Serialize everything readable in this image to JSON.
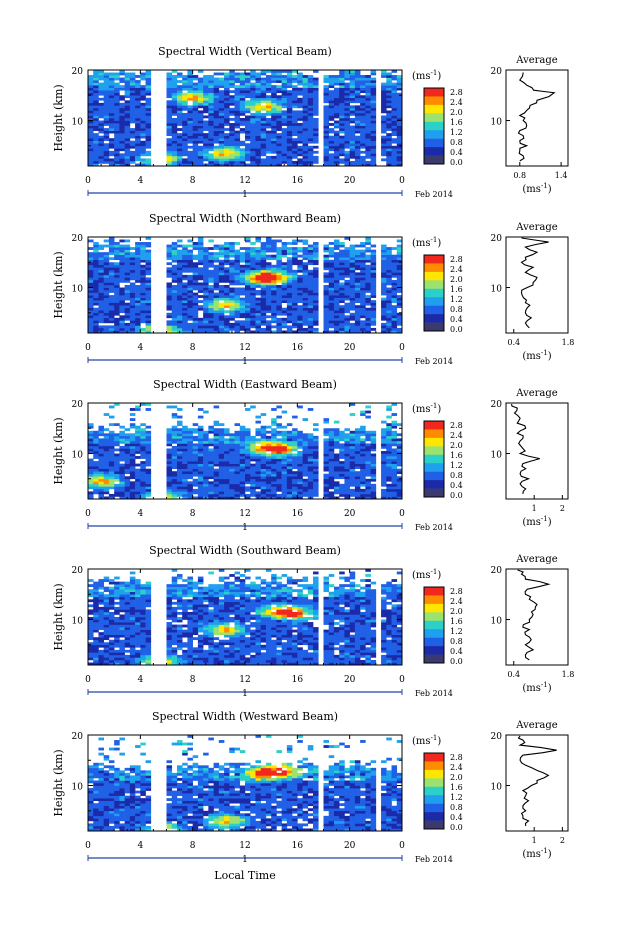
{
  "colorbar": {
    "unit_label": "(ms",
    "unit_exp": "-1",
    "unit_close": ")",
    "tick_labels": [
      "2.8",
      "2.4",
      "2.0",
      "1.6",
      "1.2",
      "0.8",
      "0.4",
      "0.0"
    ],
    "colors": [
      "#f0281e",
      "#ff8c00",
      "#ffe600",
      "#9be36e",
      "#2bd0c8",
      "#1fa0ee",
      "#2060e6",
      "#1a2aa8",
      "#3a3a6e"
    ]
  },
  "shared": {
    "ylabel": "Height (km)",
    "y_ticks": [
      "20",
      "10"
    ],
    "x_ticks": [
      "0",
      "4",
      "8",
      "12",
      "16",
      "20",
      "0"
    ],
    "day_marker": "1",
    "month_label": "Feb 2014",
    "avg_title": "Average",
    "avg_xlabel": "(ms",
    "avg_xlabel_exp": "-1",
    "avg_xlabel_close": ")",
    "xlabel_bottom": "Local Time"
  },
  "chart_data": [
    {
      "type": "heatmap",
      "title": "Spectral Width (Vertical Beam)",
      "xlim": [
        0,
        24
      ],
      "ylim": [
        1,
        20
      ],
      "data_gaps_hours": [
        [
          2.2,
          2.5
        ],
        [
          4.8,
          5.9
        ],
        [
          17.5,
          18.1
        ],
        [
          21.9,
          22.3
        ]
      ],
      "top_km": 19.5,
      "hot_spots": [
        [
          13.4,
          12.8
        ],
        [
          5.5,
          2.4
        ],
        [
          10.5,
          3.5
        ],
        [
          8.0,
          14.5
        ]
      ],
      "average": {
        "xlim": [
          0.6,
          1.5
        ],
        "x_ticks": [
          "0.8",
          "1.4"
        ],
        "profile": [
          [
            0.8,
            2
          ],
          [
            0.85,
            3
          ],
          [
            0.8,
            4
          ],
          [
            0.9,
            5
          ],
          [
            0.8,
            6
          ],
          [
            0.85,
            7
          ],
          [
            0.8,
            8
          ],
          [
            0.9,
            9
          ],
          [
            0.85,
            10
          ],
          [
            0.8,
            11
          ],
          [
            0.9,
            12
          ],
          [
            0.95,
            13
          ],
          [
            1.05,
            14
          ],
          [
            1.3,
            15.5
          ],
          [
            1.0,
            16
          ],
          [
            0.9,
            17
          ],
          [
            0.8,
            18
          ],
          [
            0.85,
            19.5
          ]
        ]
      }
    },
    {
      "type": "heatmap",
      "title": "Spectral Width (Northward Beam)",
      "xlim": [
        0,
        24
      ],
      "ylim": [
        1,
        20
      ],
      "data_gaps_hours": [
        [
          2.2,
          2.5
        ],
        [
          4.8,
          5.9
        ],
        [
          17.5,
          18.1
        ],
        [
          21.9,
          22.3
        ]
      ],
      "top_km": 18.5,
      "hot_spots": [
        [
          13.2,
          11.8
        ],
        [
          14.2,
          12.2
        ],
        [
          10.5,
          6.5
        ],
        [
          5.5,
          1.5
        ]
      ],
      "average": {
        "xlim": [
          0.2,
          1.8
        ],
        "x_ticks": [
          "0.4",
          "1.8"
        ],
        "profile": [
          [
            0.8,
            2
          ],
          [
            0.7,
            3
          ],
          [
            0.85,
            4
          ],
          [
            0.7,
            5
          ],
          [
            0.75,
            6
          ],
          [
            0.7,
            7
          ],
          [
            0.65,
            8
          ],
          [
            0.6,
            9
          ],
          [
            0.75,
            10
          ],
          [
            0.9,
            11
          ],
          [
            1.0,
            12
          ],
          [
            0.7,
            13
          ],
          [
            0.9,
            14
          ],
          [
            0.6,
            15
          ],
          [
            0.7,
            16
          ],
          [
            1.0,
            17
          ],
          [
            0.7,
            18
          ],
          [
            1.3,
            19
          ],
          [
            0.6,
            19.8
          ]
        ]
      }
    },
    {
      "type": "heatmap",
      "title": "Spectral Width (Eastward Beam)",
      "xlim": [
        0,
        24
      ],
      "ylim": [
        1,
        20
      ],
      "data_gaps_hours": [
        [
          2.2,
          2.5
        ],
        [
          4.8,
          5.9
        ],
        [
          17.5,
          18.1
        ],
        [
          21.9,
          22.3
        ]
      ],
      "top_km": 15.0,
      "hot_spots": [
        [
          13.5,
          11.2
        ],
        [
          14.8,
          10.8
        ],
        [
          5.8,
          1.2
        ],
        [
          1.0,
          4.5
        ]
      ],
      "average": {
        "xlim": [
          0.0,
          2.2
        ],
        "x_ticks": [
          "1",
          "2"
        ],
        "profile": [
          [
            0.6,
            2
          ],
          [
            0.7,
            3
          ],
          [
            0.5,
            4
          ],
          [
            0.8,
            5
          ],
          [
            0.5,
            6
          ],
          [
            0.7,
            7
          ],
          [
            0.6,
            8
          ],
          [
            1.2,
            9
          ],
          [
            0.5,
            10
          ],
          [
            0.6,
            11
          ],
          [
            0.45,
            12
          ],
          [
            0.6,
            13
          ],
          [
            0.4,
            14
          ],
          [
            0.7,
            15
          ],
          [
            0.4,
            16
          ],
          [
            0.5,
            17
          ],
          [
            0.3,
            18
          ],
          [
            0.4,
            19
          ],
          [
            0.2,
            19.8
          ]
        ]
      }
    },
    {
      "type": "heatmap",
      "title": "Spectral Width (Southward Beam)",
      "xlim": [
        0,
        24
      ],
      "ylim": [
        1,
        20
      ],
      "data_gaps_hours": [
        [
          2.2,
          2.5
        ],
        [
          4.8,
          5.9
        ],
        [
          17.5,
          18.1
        ],
        [
          21.9,
          22.3
        ]
      ],
      "top_km": 17.5,
      "hot_spots": [
        [
          14.5,
          11.6
        ],
        [
          16.0,
          11.2
        ],
        [
          10.5,
          8.0
        ],
        [
          5.5,
          1.6
        ]
      ],
      "average": {
        "xlim": [
          0.2,
          1.8
        ],
        "x_ticks": [
          "0.4",
          "1.8"
        ],
        "profile": [
          [
            0.8,
            2
          ],
          [
            0.7,
            3
          ],
          [
            0.9,
            4
          ],
          [
            0.7,
            5
          ],
          [
            0.85,
            6
          ],
          [
            0.7,
            7
          ],
          [
            0.8,
            8
          ],
          [
            0.65,
            9
          ],
          [
            0.8,
            10
          ],
          [
            0.9,
            11
          ],
          [
            0.95,
            12
          ],
          [
            1.0,
            13
          ],
          [
            0.8,
            14
          ],
          [
            0.7,
            15
          ],
          [
            0.75,
            16
          ],
          [
            1.3,
            17
          ],
          [
            0.7,
            18
          ],
          [
            0.6,
            19
          ],
          [
            0.5,
            19.8
          ]
        ]
      }
    },
    {
      "type": "heatmap",
      "title": "Spectral Width (Westward Beam)",
      "xlim": [
        0,
        24
      ],
      "ylim": [
        1,
        20
      ],
      "data_gaps_hours": [
        [
          2.2,
          2.5
        ],
        [
          4.8,
          5.9
        ],
        [
          17.5,
          18.1
        ],
        [
          21.9,
          22.3
        ]
      ],
      "top_km": 14.0,
      "hot_spots": [
        [
          14.8,
          12.8
        ],
        [
          13.4,
          12.4
        ],
        [
          5.8,
          1.2
        ],
        [
          10.5,
          3.0
        ]
      ],
      "average": {
        "xlim": [
          0.0,
          2.2
        ],
        "x_ticks": [
          "1",
          "2"
        ],
        "profile": [
          [
            0.7,
            2
          ],
          [
            0.8,
            3
          ],
          [
            0.6,
            4
          ],
          [
            0.7,
            5
          ],
          [
            0.6,
            6
          ],
          [
            0.8,
            7
          ],
          [
            0.7,
            8
          ],
          [
            0.6,
            9
          ],
          [
            0.9,
            10
          ],
          [
            1.1,
            11
          ],
          [
            1.5,
            12
          ],
          [
            1.1,
            13
          ],
          [
            0.7,
            14
          ],
          [
            0.5,
            15
          ],
          [
            0.6,
            16
          ],
          [
            1.8,
            17
          ],
          [
            0.5,
            18
          ],
          [
            0.6,
            19
          ],
          [
            0.5,
            19.8
          ]
        ]
      }
    }
  ]
}
